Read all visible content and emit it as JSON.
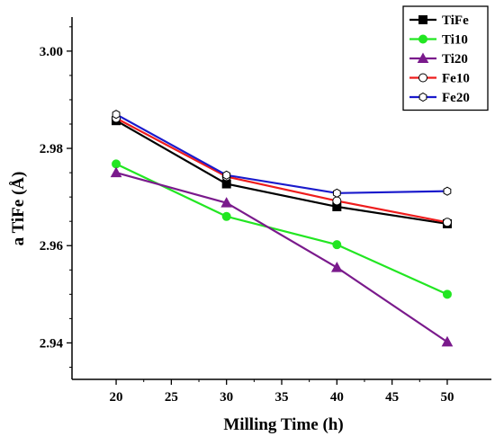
{
  "chart_data": {
    "type": "line",
    "title": "",
    "xlabel": "Milling Time (h)",
    "ylabel": "a TiFe (Å)",
    "xlim": [
      16,
      54
    ],
    "ylim": [
      2.9325,
      3.007
    ],
    "x_ticks": [
      20,
      25,
      30,
      35,
      40,
      45,
      50
    ],
    "y_ticks": [
      2.94,
      2.96,
      2.98,
      3.0
    ],
    "x_tick_labels": [
      "20",
      "25",
      "30",
      "35",
      "40",
      "45",
      "50"
    ],
    "y_tick_labels": [
      "2.94",
      "2.96",
      "2.98",
      "3.00"
    ],
    "grid": false,
    "legend_position": "top-right",
    "x": [
      20,
      30,
      40,
      50
    ],
    "series": [
      {
        "name": "TiFe",
        "values": [
          2.9857,
          2.9727,
          2.968,
          2.9645
        ],
        "color": "#000000",
        "marker": "square-filled"
      },
      {
        "name": "Ti10",
        "values": [
          2.9768,
          2.966,
          2.9602,
          2.95
        ],
        "color": "#22e622",
        "marker": "circle-filled"
      },
      {
        "name": "Ti20",
        "values": [
          2.975,
          2.9688,
          2.9555,
          2.9402
        ],
        "color": "#7a1a8c",
        "marker": "triangle-filled"
      },
      {
        "name": "Fe10",
        "values": [
          2.9862,
          2.9742,
          2.9692,
          2.9648
        ],
        "color": "#ee1c1c",
        "marker": "circle-open"
      },
      {
        "name": "Fe20",
        "values": [
          2.987,
          2.9745,
          2.9708,
          2.9712
        ],
        "color": "#1a1acc",
        "marker": "hexagon-open"
      }
    ]
  }
}
